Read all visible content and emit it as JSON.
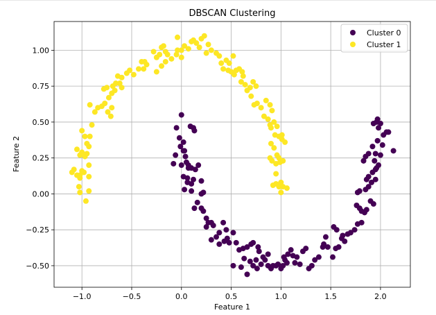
{
  "chart_data": {
    "type": "scatter",
    "title": "DBSCAN Clustering",
    "xlabel": "Feature 1",
    "ylabel": "Feature 2",
    "xlim": [
      -1.28,
      2.3
    ],
    "ylim": [
      -0.65,
      1.2
    ],
    "x_ticks": [
      -1.0,
      -0.5,
      0.0,
      0.5,
      1.0,
      1.5,
      2.0
    ],
    "x_tick_labels": [
      "−1.0",
      "−0.5",
      "0.0",
      "0.5",
      "1.0",
      "1.5",
      "2.0"
    ],
    "y_ticks": [
      -0.5,
      -0.25,
      0.0,
      0.25,
      0.5,
      0.75,
      1.0
    ],
    "y_tick_labels": [
      "−0.50",
      "−0.25",
      "0.00",
      "0.25",
      "0.50",
      "0.75",
      "1.00"
    ],
    "grid": true,
    "legend_position": "upper right",
    "series": [
      {
        "name": "Cluster 0",
        "color": "#440154",
        "points": [
          [
            0.0,
            0.55
          ],
          [
            -0.05,
            0.46
          ],
          [
            -0.02,
            0.39
          ],
          [
            0.02,
            0.36
          ],
          [
            0.03,
            0.3
          ],
          [
            -0.06,
            0.27
          ],
          [
            0.05,
            0.22
          ],
          [
            -0.08,
            0.21
          ],
          [
            0.0,
            0.2
          ],
          [
            0.07,
            0.18
          ],
          [
            0.1,
            0.18
          ],
          [
            0.14,
            0.17
          ],
          [
            0.09,
            0.47
          ],
          [
            0.12,
            0.46
          ],
          [
            0.13,
            0.44
          ],
          [
            0.02,
            0.12
          ],
          [
            0.06,
            0.11
          ],
          [
            0.12,
            0.1
          ],
          [
            0.06,
            0.08
          ],
          [
            0.1,
            0.07
          ],
          [
            0.2,
            0.09
          ],
          [
            0.03,
            0.03
          ],
          [
            0.1,
            0.02
          ],
          [
            0.2,
            0.0
          ],
          [
            0.22,
            0.01
          ],
          [
            0.16,
            -0.06
          ],
          [
            0.13,
            -0.1
          ],
          [
            0.2,
            -0.1
          ],
          [
            0.22,
            -0.12
          ],
          [
            0.25,
            -0.17
          ],
          [
            0.27,
            -0.2
          ],
          [
            0.25,
            -0.23
          ],
          [
            0.3,
            -0.2
          ],
          [
            0.32,
            -0.22
          ],
          [
            0.38,
            -0.27
          ],
          [
            0.45,
            -0.25
          ],
          [
            0.42,
            -0.2
          ],
          [
            0.3,
            -0.32
          ],
          [
            0.35,
            -0.3
          ],
          [
            0.38,
            -0.35
          ],
          [
            0.43,
            -0.33
          ],
          [
            0.46,
            -0.31
          ],
          [
            0.48,
            -0.34
          ],
          [
            0.52,
            -0.27
          ],
          [
            0.55,
            -0.34
          ],
          [
            0.58,
            -0.39
          ],
          [
            0.62,
            -0.38
          ],
          [
            0.66,
            -0.37
          ],
          [
            0.7,
            -0.35
          ],
          [
            0.72,
            -0.34
          ],
          [
            0.77,
            -0.37
          ],
          [
            0.78,
            -0.4
          ],
          [
            0.63,
            -0.45
          ],
          [
            0.69,
            -0.47
          ],
          [
            0.72,
            -0.5
          ],
          [
            0.75,
            -0.46
          ],
          [
            0.82,
            -0.44
          ],
          [
            0.87,
            -0.42
          ],
          [
            0.52,
            -0.5
          ],
          [
            0.6,
            -0.51
          ],
          [
            0.66,
            -0.56
          ],
          [
            0.76,
            -0.52
          ],
          [
            0.8,
            -0.49
          ],
          [
            0.84,
            -0.46
          ],
          [
            0.87,
            -0.5
          ],
          [
            0.9,
            -0.52
          ],
          [
            0.92,
            -0.5
          ],
          [
            0.95,
            -0.5
          ],
          [
            0.97,
            -0.49
          ],
          [
            1.0,
            -0.52
          ],
          [
            1.02,
            -0.5
          ],
          [
            1.04,
            -0.46
          ],
          [
            1.06,
            -0.48
          ],
          [
            1.03,
            -0.44
          ],
          [
            1.07,
            -0.42
          ],
          [
            1.1,
            -0.39
          ],
          [
            1.12,
            -0.43
          ],
          [
            1.14,
            -0.48
          ],
          [
            1.16,
            -0.44
          ],
          [
            1.19,
            -0.49
          ],
          [
            1.22,
            -0.4
          ],
          [
            1.25,
            -0.38
          ],
          [
            1.28,
            -0.52
          ],
          [
            1.31,
            -0.5
          ],
          [
            1.34,
            -0.46
          ],
          [
            1.38,
            -0.44
          ],
          [
            1.42,
            -0.37
          ],
          [
            1.43,
            -0.35
          ],
          [
            1.45,
            -0.3
          ],
          [
            1.47,
            -0.37
          ],
          [
            1.52,
            -0.44
          ],
          [
            1.55,
            -0.38
          ],
          [
            1.58,
            -0.37
          ],
          [
            1.61,
            -0.31
          ],
          [
            1.64,
            -0.33
          ],
          [
            1.53,
            -0.23
          ],
          [
            1.56,
            -0.25
          ],
          [
            1.62,
            -0.29
          ],
          [
            1.67,
            -0.28
          ],
          [
            1.7,
            -0.27
          ],
          [
            1.74,
            -0.25
          ],
          [
            1.77,
            -0.21
          ],
          [
            1.81,
            -0.2
          ],
          [
            1.76,
            -0.08
          ],
          [
            1.79,
            -0.1
          ],
          [
            1.81,
            -0.12
          ],
          [
            1.84,
            -0.13
          ],
          [
            1.86,
            -0.11
          ],
          [
            1.9,
            -0.05
          ],
          [
            1.93,
            -0.07
          ],
          [
            1.77,
            0.01
          ],
          [
            1.79,
            0.02
          ],
          [
            1.85,
            0.03
          ],
          [
            1.88,
            0.05
          ],
          [
            1.91,
            0.08
          ],
          [
            1.95,
            0.1
          ],
          [
            1.86,
            0.1
          ],
          [
            1.88,
            0.12
          ],
          [
            1.92,
            0.15
          ],
          [
            1.95,
            0.17
          ],
          [
            1.98,
            0.2
          ],
          [
            1.94,
            0.23
          ],
          [
            1.96,
            0.18
          ],
          [
            1.83,
            0.23
          ],
          [
            1.85,
            0.26
          ],
          [
            1.88,
            0.28
          ],
          [
            1.95,
            0.28
          ],
          [
            2.0,
            0.27
          ],
          [
            1.92,
            0.33
          ],
          [
            1.97,
            0.37
          ],
          [
            2.02,
            0.34
          ],
          [
            2.03,
            0.41
          ],
          [
            2.06,
            0.43
          ],
          [
            2.08,
            0.43
          ],
          [
            2.13,
            0.3
          ],
          [
            1.93,
            0.49
          ],
          [
            1.96,
            0.5
          ],
          [
            1.98,
            0.46
          ],
          [
            2.0,
            0.49
          ],
          [
            1.97,
            0.52
          ],
          [
            0.02,
            0.3
          ],
          [
            0.04,
            0.26
          ],
          [
            0.07,
            0.2
          ],
          [
            -0.01,
            0.33
          ],
          [
            0.17,
            0.2
          ]
        ]
      },
      {
        "name": "Cluster 1",
        "color": "#fde725",
        "points": [
          [
            -1.1,
            0.15
          ],
          [
            -1.08,
            0.17
          ],
          [
            -1.05,
            0.13
          ],
          [
            -1.02,
            0.11
          ],
          [
            -1.0,
            0.16
          ],
          [
            -1.03,
            0.05
          ],
          [
            -1.02,
            0.13
          ],
          [
            -0.98,
            0.15
          ],
          [
            -0.93,
            0.12
          ],
          [
            -1.05,
            0.31
          ],
          [
            -1.02,
            0.27
          ],
          [
            -1.0,
            0.29
          ],
          [
            -0.97,
            0.26
          ],
          [
            -0.95,
            0.28
          ],
          [
            -0.93,
            0.2
          ],
          [
            -1.0,
            0.44
          ],
          [
            -0.97,
            0.4
          ],
          [
            -0.95,
            0.35
          ],
          [
            -0.93,
            0.33
          ],
          [
            -0.92,
            0.4
          ],
          [
            -0.9,
            0.48
          ],
          [
            -0.87,
            0.57
          ],
          [
            -1.02,
            0.01
          ],
          [
            -0.93,
            0.02
          ],
          [
            -0.96,
            -0.05
          ],
          [
            -0.92,
            0.62
          ],
          [
            -0.84,
            0.6
          ],
          [
            -0.8,
            0.61
          ],
          [
            -0.77,
            0.63
          ],
          [
            -0.74,
            0.57
          ],
          [
            -0.71,
            0.54
          ],
          [
            -0.7,
            0.6
          ],
          [
            -0.78,
            0.73
          ],
          [
            -0.75,
            0.74
          ],
          [
            -0.73,
            0.67
          ],
          [
            -0.7,
            0.7
          ],
          [
            -0.69,
            0.75
          ],
          [
            -0.67,
            0.72
          ],
          [
            -0.62,
            0.77
          ],
          [
            -0.6,
            0.74
          ],
          [
            -0.66,
            0.77
          ],
          [
            -0.64,
            0.82
          ],
          [
            -0.6,
            0.81
          ],
          [
            -0.55,
            0.84
          ],
          [
            -0.52,
            0.86
          ],
          [
            -0.48,
            0.83
          ],
          [
            -0.4,
            0.92
          ],
          [
            -0.38,
            0.87
          ],
          [
            -0.35,
            0.9
          ],
          [
            -0.43,
            0.87
          ],
          [
            -0.37,
            0.92
          ],
          [
            -0.28,
            0.99
          ],
          [
            -0.25,
            0.95
          ],
          [
            -0.22,
            0.97
          ],
          [
            -0.2,
            1.02
          ],
          [
            -0.18,
            1.03
          ],
          [
            -0.16,
            0.99
          ],
          [
            -0.14,
            0.97
          ],
          [
            -0.25,
            0.85
          ],
          [
            -0.2,
            0.89
          ],
          [
            -0.16,
            0.92
          ],
          [
            -0.1,
            0.94
          ],
          [
            -0.05,
            0.97
          ],
          [
            -0.04,
            1.0
          ],
          [
            0.0,
            1.0
          ],
          [
            0.03,
            1.03
          ],
          [
            0.0,
            0.95
          ],
          [
            -0.04,
            1.09
          ],
          [
            0.07,
            1.01
          ],
          [
            0.1,
            1.06
          ],
          [
            0.12,
            1.07
          ],
          [
            0.15,
            1.05
          ],
          [
            0.18,
            1.02
          ],
          [
            0.2,
            1.08
          ],
          [
            0.23,
            1.1
          ],
          [
            0.27,
            1.04
          ],
          [
            0.25,
            0.98
          ],
          [
            0.3,
            1.0
          ],
          [
            0.35,
            0.98
          ],
          [
            0.38,
            0.96
          ],
          [
            0.4,
            0.91
          ],
          [
            0.45,
            0.93
          ],
          [
            0.48,
            0.91
          ],
          [
            0.52,
            0.96
          ],
          [
            0.42,
            0.87
          ],
          [
            0.47,
            0.86
          ],
          [
            0.5,
            0.85
          ],
          [
            0.53,
            0.83
          ],
          [
            0.55,
            0.86
          ],
          [
            0.58,
            0.87
          ],
          [
            0.61,
            0.85
          ],
          [
            0.62,
            0.82
          ],
          [
            0.6,
            0.78
          ],
          [
            0.64,
            0.76
          ],
          [
            0.66,
            0.72
          ],
          [
            0.69,
            0.74
          ],
          [
            0.72,
            0.78
          ],
          [
            0.75,
            0.75
          ],
          [
            0.7,
            0.68
          ],
          [
            0.73,
            0.62
          ],
          [
            0.76,
            0.63
          ],
          [
            0.8,
            0.6
          ],
          [
            0.85,
            0.65
          ],
          [
            0.89,
            0.62
          ],
          [
            0.91,
            0.58
          ],
          [
            0.83,
            0.54
          ],
          [
            0.87,
            0.52
          ],
          [
            0.89,
            0.48
          ],
          [
            0.9,
            0.46
          ],
          [
            0.93,
            0.5
          ],
          [
            0.96,
            0.47
          ],
          [
            0.94,
            0.41
          ],
          [
            0.98,
            0.4
          ],
          [
            1.01,
            0.41
          ],
          [
            1.04,
            0.36
          ],
          [
            1.01,
            0.38
          ],
          [
            0.9,
            0.35
          ],
          [
            0.93,
            0.32
          ],
          [
            0.96,
            0.27
          ],
          [
            0.98,
            0.25
          ],
          [
            0.89,
            0.25
          ],
          [
            0.91,
            0.23
          ],
          [
            0.95,
            0.21
          ],
          [
            0.99,
            0.22
          ],
          [
            1.02,
            0.23
          ],
          [
            0.95,
            0.14
          ],
          [
            1.0,
            0.08
          ],
          [
            0.92,
            0.06
          ],
          [
            0.95,
            0.07
          ],
          [
            0.98,
            0.05
          ],
          [
            1.02,
            0.05
          ],
          [
            1.06,
            0.04
          ],
          [
            1.0,
            0.01
          ]
        ]
      }
    ]
  }
}
